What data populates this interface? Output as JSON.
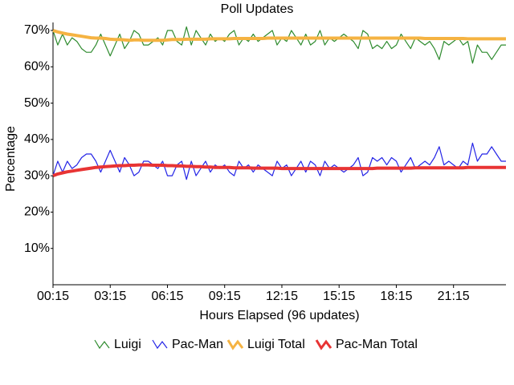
{
  "chart_data": {
    "type": "line",
    "title": "Poll Updates",
    "x_label": "Hours Elapsed (96 updates)",
    "y_label": "Percentage",
    "categories": [
      "00:15",
      null,
      null,
      null,
      null,
      null,
      null,
      null,
      null,
      null,
      null,
      null,
      "03:15",
      null,
      null,
      null,
      null,
      null,
      null,
      null,
      null,
      null,
      null,
      null,
      "06:15",
      null,
      null,
      null,
      null,
      null,
      null,
      null,
      null,
      null,
      null,
      null,
      "09:15",
      null,
      null,
      null,
      null,
      null,
      null,
      null,
      null,
      null,
      null,
      null,
      "12:15",
      null,
      null,
      null,
      null,
      null,
      null,
      null,
      null,
      null,
      null,
      null,
      "15:15",
      null,
      null,
      null,
      null,
      null,
      null,
      null,
      null,
      null,
      null,
      null,
      "18:15",
      null,
      null,
      null,
      null,
      null,
      null,
      null,
      null,
      null,
      null,
      null,
      "21:15",
      null,
      null,
      null,
      null,
      null,
      null,
      null,
      null,
      null,
      null,
      null
    ],
    "ylim": [
      0,
      70
    ],
    "yticks": [
      {
        "value": 10,
        "label": "10%"
      },
      {
        "value": 20,
        "label": "20%"
      },
      {
        "value": 30,
        "label": "30%"
      },
      {
        "value": 40,
        "label": "40%"
      },
      {
        "value": 50,
        "label": "50%"
      },
      {
        "value": 60,
        "label": "60%"
      },
      {
        "value": 70,
        "label": "70%"
      }
    ],
    "grid": false,
    "legend": "bottom",
    "series": [
      {
        "name": "Luigi",
        "color": "#2e8b2e",
        "width": 1.2,
        "values": [
          70,
          66,
          69,
          66,
          68,
          67,
          65,
          64,
          64,
          66,
          69,
          66,
          63,
          66,
          69,
          65,
          67,
          70,
          69,
          66,
          66,
          67,
          68,
          66,
          70,
          70,
          67,
          66,
          71,
          66,
          70,
          68,
          66,
          69,
          67,
          68,
          67,
          69,
          70,
          66,
          68,
          67,
          69,
          67,
          68,
          69,
          70,
          66,
          68,
          67,
          70,
          68,
          66,
          69,
          66,
          67,
          70,
          66,
          68,
          67,
          68,
          69,
          68,
          67,
          65,
          70,
          69,
          65,
          66,
          65,
          67,
          65,
          66,
          69,
          67,
          65,
          68,
          67,
          66,
          67,
          65,
          62,
          67,
          66,
          67,
          68,
          66,
          67,
          61,
          66,
          64,
          64,
          62,
          64,
          66,
          66
        ]
      },
      {
        "name": "Pac-Man",
        "color": "#2424e6",
        "width": 1.2,
        "values": [
          30,
          34,
          31,
          34,
          32,
          33,
          35,
          36,
          36,
          34,
          31,
          34,
          37,
          34,
          31,
          35,
          33,
          30,
          31,
          34,
          34,
          33,
          32,
          34,
          30,
          30,
          33,
          34,
          29,
          34,
          30,
          32,
          34,
          31,
          33,
          32,
          33,
          31,
          30,
          34,
          32,
          33,
          31,
          33,
          32,
          31,
          30,
          34,
          32,
          33,
          30,
          32,
          34,
          31,
          34,
          33,
          30,
          34,
          32,
          33,
          32,
          31,
          32,
          33,
          35,
          30,
          31,
          35,
          34,
          35,
          33,
          35,
          34,
          31,
          33,
          35,
          32,
          33,
          34,
          33,
          35,
          38,
          33,
          34,
          33,
          32,
          34,
          33,
          39,
          34,
          36,
          36,
          38,
          36,
          34,
          34
        ]
      },
      {
        "name": "Luigi Total",
        "color": "#f5b342",
        "width": 4,
        "values": [
          70.0,
          69.6,
          69.3,
          69.0,
          68.8,
          68.6,
          68.4,
          68.2,
          68.0,
          67.9,
          67.9,
          67.8,
          67.6,
          67.5,
          67.5,
          67.4,
          67.3,
          67.4,
          67.4,
          67.3,
          67.3,
          67.3,
          67.3,
          67.3,
          67.4,
          67.5,
          67.5,
          67.5,
          67.6,
          67.6,
          67.6,
          67.6,
          67.6,
          67.7,
          67.7,
          67.7,
          67.7,
          67.7,
          67.8,
          67.8,
          67.8,
          67.8,
          67.8,
          67.8,
          67.8,
          67.9,
          67.9,
          67.9,
          67.9,
          67.9,
          67.9,
          67.9,
          67.9,
          67.9,
          67.9,
          67.9,
          67.9,
          67.9,
          67.9,
          67.9,
          67.9,
          67.9,
          67.9,
          67.9,
          67.9,
          67.9,
          67.9,
          67.9,
          67.9,
          67.9,
          67.9,
          67.9,
          67.9,
          67.9,
          67.9,
          67.9,
          67.9,
          67.9,
          67.8,
          67.8,
          67.8,
          67.8,
          67.8,
          67.8,
          67.8,
          67.8,
          67.8,
          67.7,
          67.7,
          67.7,
          67.7,
          67.7,
          67.7,
          67.7,
          67.7,
          67.7
        ]
      },
      {
        "name": "Pac-Man Total",
        "color": "#e83434",
        "width": 4,
        "values": [
          30.0,
          30.5,
          30.8,
          31.1,
          31.3,
          31.5,
          31.7,
          31.9,
          32.1,
          32.3,
          32.4,
          32.5,
          32.6,
          32.7,
          32.8,
          32.8,
          32.9,
          32.9,
          33.0,
          33.0,
          33.0,
          32.9,
          32.9,
          32.9,
          32.8,
          32.8,
          32.7,
          32.7,
          32.6,
          32.6,
          32.5,
          32.5,
          32.4,
          32.4,
          32.3,
          32.3,
          32.3,
          32.3,
          32.2,
          32.2,
          32.2,
          32.2,
          32.1,
          32.1,
          32.1,
          32.1,
          32.1,
          32.1,
          32.0,
          32.0,
          32.0,
          32.0,
          32.0,
          32.0,
          32.0,
          32.0,
          32.0,
          32.0,
          32.0,
          32.0,
          32.0,
          32.0,
          32.0,
          32.0,
          32.0,
          32.0,
          32.0,
          32.0,
          32.1,
          32.1,
          32.1,
          32.1,
          32.1,
          32.1,
          32.1,
          32.1,
          32.2,
          32.2,
          32.2,
          32.2,
          32.2,
          32.2,
          32.2,
          32.2,
          32.2,
          32.2,
          32.2,
          32.3,
          32.3,
          32.3,
          32.3,
          32.3,
          32.3,
          32.3,
          32.3,
          32.3
        ]
      }
    ]
  }
}
